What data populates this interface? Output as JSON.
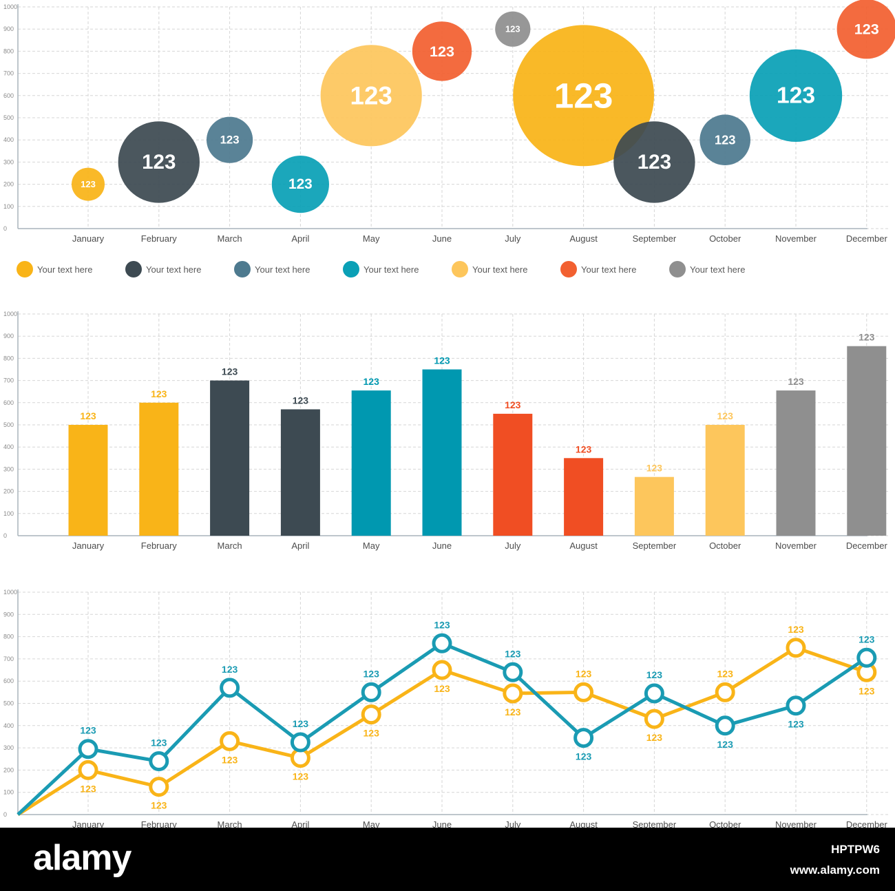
{
  "chart_data": [
    {
      "type": "scatter",
      "subtype": "bubble",
      "yticks": [
        0,
        100,
        200,
        300,
        400,
        500,
        600,
        700,
        800,
        900,
        1000
      ],
      "ylim": [
        0,
        1000
      ],
      "categories": [
        "January",
        "February",
        "March",
        "April",
        "May",
        "June",
        "July",
        "August",
        "September",
        "October",
        "November",
        "December"
      ],
      "points": [
        {
          "x": "January",
          "y": 200,
          "size": 1.5,
          "color": "#f9b418",
          "label": "123"
        },
        {
          "x": "February",
          "y": 300,
          "size": 3.7,
          "color": "#3d4a52",
          "label": "123"
        },
        {
          "x": "March",
          "y": 400,
          "size": 2.1,
          "color": "#4e7a8f",
          "label": "123"
        },
        {
          "x": "April",
          "y": 200,
          "size": 2.6,
          "color": "#0aa0b6",
          "label": "123"
        },
        {
          "x": "May",
          "y": 600,
          "size": 4.6,
          "color": "#fdc65c",
          "label": "123"
        },
        {
          "x": "June",
          "y": 800,
          "size": 2.7,
          "color": "#f26030",
          "label": "123"
        },
        {
          "x": "July",
          "y": 900,
          "size": 1.6,
          "color": "#8f8f8f",
          "label": "123"
        },
        {
          "x": "August",
          "y": 600,
          "size": 6.4,
          "color": "#f9b418",
          "label": "123"
        },
        {
          "x": "September",
          "y": 300,
          "size": 3.7,
          "color": "#3d4a52",
          "label": "123"
        },
        {
          "x": "October",
          "y": 400,
          "size": 2.3,
          "color": "#4e7a8f",
          "label": "123"
        },
        {
          "x": "November",
          "y": 600,
          "size": 4.2,
          "color": "#0aa0b6",
          "label": "123"
        },
        {
          "x": "December",
          "y": 900,
          "size": 2.7,
          "color": "#f26030",
          "label": "123"
        }
      ],
      "legend": [
        {
          "color": "#f9b418",
          "text": "Your text here"
        },
        {
          "color": "#3d4a52",
          "text": "Your text here"
        },
        {
          "color": "#4e7a8f",
          "text": "Your text here"
        },
        {
          "color": "#0aa0b6",
          "text": "Your text here"
        },
        {
          "color": "#fdc65c",
          "text": "Your text here"
        },
        {
          "color": "#f26030",
          "text": "Your text here"
        },
        {
          "color": "#8f8f8f",
          "text": "Your text here"
        }
      ],
      "grid": true
    },
    {
      "type": "bar",
      "yticks": [
        0,
        100,
        200,
        300,
        400,
        500,
        600,
        700,
        800,
        900,
        1000
      ],
      "ylim": [
        0,
        1000
      ],
      "categories": [
        "January",
        "February",
        "March",
        "April",
        "May",
        "June",
        "July",
        "August",
        "September",
        "October",
        "November",
        "December"
      ],
      "values": [
        500,
        600,
        700,
        570,
        655,
        750,
        550,
        350,
        265,
        500,
        655,
        855
      ],
      "colors": [
        "#f9b418",
        "#f9b418",
        "#3d4a52",
        "#3d4a52",
        "#0098b0",
        "#0098b0",
        "#f04e23",
        "#f04e23",
        "#fdc65c",
        "#fdc65c",
        "#8f8f8f",
        "#8f8f8f"
      ],
      "labels": [
        "123",
        "123",
        "123",
        "123",
        "123",
        "123",
        "123",
        "123",
        "123",
        "123",
        "123",
        "123"
      ],
      "grid": true
    },
    {
      "type": "line",
      "yticks": [
        0,
        100,
        200,
        300,
        400,
        500,
        600,
        700,
        800,
        900,
        1000
      ],
      "ylim": [
        0,
        1000
      ],
      "categories": [
        "January",
        "February",
        "March",
        "April",
        "May",
        "June",
        "July",
        "August",
        "September",
        "October",
        "November",
        "December"
      ],
      "origin": 0,
      "series": [
        {
          "color": "#f9b418",
          "values": [
            200,
            125,
            330,
            255,
            450,
            650,
            545,
            550,
            430,
            550,
            750,
            640
          ],
          "labels": [
            "123",
            "123",
            "123",
            "123",
            "123",
            "123",
            "123",
            "123",
            "123",
            "123",
            "123",
            "123"
          ]
        },
        {
          "color": "#1a9bb3",
          "values": [
            295,
            240,
            570,
            325,
            550,
            770,
            640,
            345,
            545,
            400,
            490,
            705
          ],
          "labels": [
            "123",
            "123",
            "123",
            "123",
            "123",
            "123",
            "123",
            "123",
            "123",
            "123",
            "123",
            "123"
          ]
        }
      ],
      "grid": true
    }
  ],
  "watermark": {
    "logo": "alamy",
    "image_id": "HPTPW6",
    "url": "www.alamy.com"
  }
}
